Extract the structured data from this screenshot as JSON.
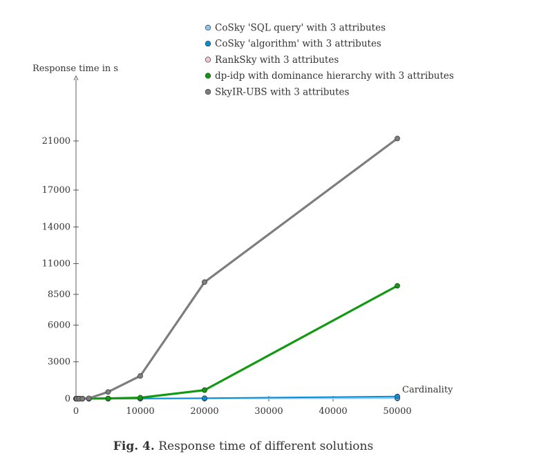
{
  "chart_data": {
    "type": "line",
    "xlabel": "Cardinality",
    "ylabel": "Response time in s",
    "xlim": [
      0,
      50000
    ],
    "ylim": [
      0,
      23000
    ],
    "x_ticks": [
      0,
      10000,
      20000,
      30000,
      40000,
      50000
    ],
    "y_ticks": [
      0,
      3000,
      6000,
      8500,
      11000,
      14000,
      17000,
      21000
    ],
    "grid": false,
    "legend_position": "top",
    "series": [
      {
        "name": "CoSky 'SQL query' with 3 attributes",
        "color": "#8fc6f0",
        "x": [
          10,
          50,
          100,
          500,
          1000,
          2000,
          5000,
          10000,
          20000,
          50000
        ],
        "y": [
          0,
          0,
          0,
          0,
          0,
          0,
          2,
          5,
          20,
          60
        ]
      },
      {
        "name": "CoSky 'algorithm' with 3 attributes",
        "color": "#0a8fd6",
        "x": [
          10,
          50,
          100,
          500,
          1000,
          2000,
          5000,
          10000,
          20000,
          50000
        ],
        "y": [
          0,
          0,
          0,
          0,
          0,
          0,
          5,
          15,
          40,
          180
        ]
      },
      {
        "name": "RankSky with 3 attributes",
        "color": "#f2c6d8",
        "x": [
          10,
          50,
          100,
          500,
          1000,
          2000,
          5000,
          10000,
          20000,
          50000
        ],
        "y": [
          0,
          0,
          0,
          0,
          0,
          0,
          2,
          4,
          10,
          30
        ]
      },
      {
        "name": "dp-idp with dominance hierarchy with 3 attributes",
        "color": "#119a11",
        "x": [
          10,
          50,
          100,
          500,
          1000,
          2000,
          5000,
          10000,
          20000,
          50000
        ],
        "y": [
          0,
          0,
          0,
          0,
          0,
          10,
          20,
          80,
          700,
          9200
        ]
      },
      {
        "name": "SkyIR-UBS with 3 attributes",
        "color": "#7d7d7d",
        "x": [
          10,
          50,
          100,
          500,
          1000,
          2000,
          5000,
          10000,
          20000,
          50000
        ],
        "y": [
          0,
          0,
          0,
          0,
          0,
          30,
          550,
          1850,
          9500,
          21200
        ]
      }
    ]
  },
  "caption": {
    "label": "Fig. 4.",
    "text": "Response time of different solutions"
  }
}
